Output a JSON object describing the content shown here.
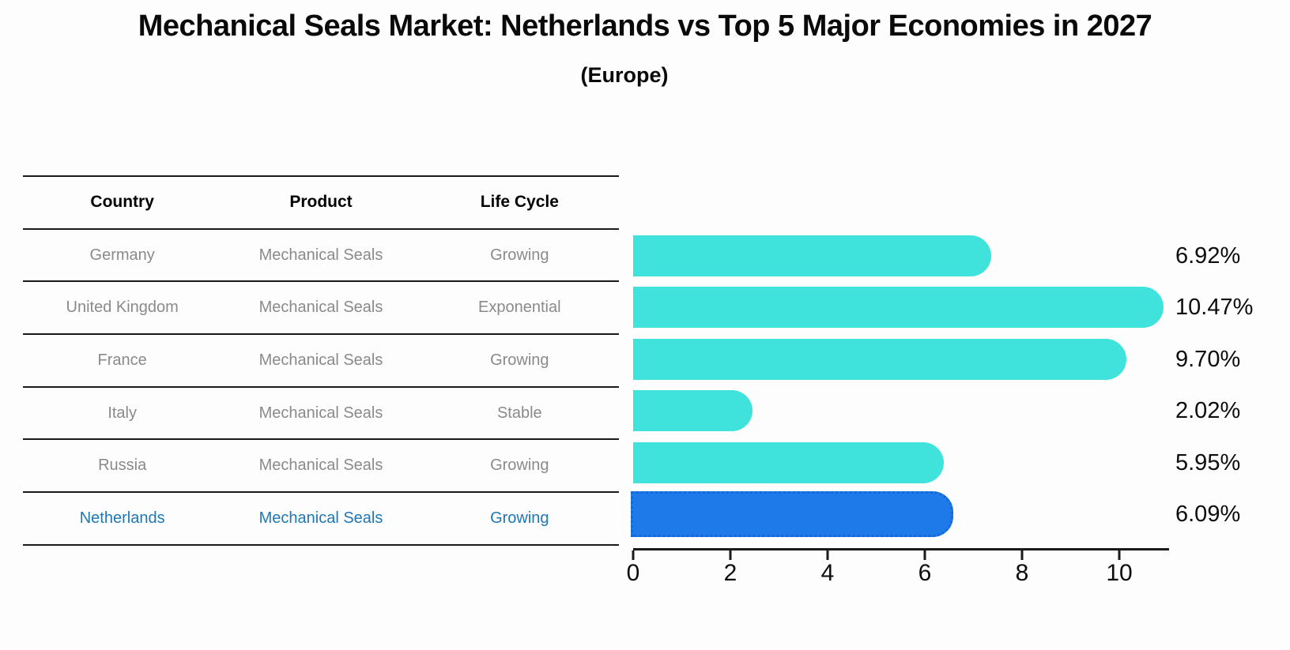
{
  "title": "Mechanical Seals Market: Netherlands vs Top 5 Major Economies in 2027",
  "subtitle": "(Europe)",
  "colors": {
    "background": "#fdfdfd",
    "bar_default": "#40e3dc",
    "bar_highlight": "#1e7ae8",
    "bar_highlight_edge": "#1668d6",
    "highlight_text": "#1f77b4",
    "row_text": "#8a8a8a",
    "header_text": "#000000",
    "axis": "#1a1a1a"
  },
  "table": {
    "headers": [
      "Country",
      "Product",
      "Life Cycle"
    ],
    "rows": [
      {
        "country": "Germany",
        "product": "Mechanical Seals",
        "life_cycle": "Growing",
        "highlight": false
      },
      {
        "country": "United Kingdom",
        "product": "Mechanical Seals",
        "life_cycle": "Exponential",
        "highlight": false
      },
      {
        "country": "France",
        "product": "Mechanical Seals",
        "life_cycle": "Growing",
        "highlight": false
      },
      {
        "country": "Italy",
        "product": "Mechanical Seals",
        "life_cycle": "Stable",
        "highlight": false
      },
      {
        "country": "Russia",
        "product": "Mechanical Seals",
        "life_cycle": "Growing",
        "highlight": false
      },
      {
        "country": "Netherlands",
        "product": "Mechanical Seals",
        "life_cycle": "Growing",
        "highlight": true
      }
    ]
  },
  "chart_data": {
    "type": "bar",
    "orientation": "horizontal",
    "title": "Mechanical Seals Market: Netherlands vs Top 5 Major Economies in 2027",
    "subtitle": "(Europe)",
    "categories": [
      "Germany",
      "United Kingdom",
      "France",
      "Italy",
      "Russia",
      "Netherlands"
    ],
    "values": [
      6.92,
      10.47,
      9.7,
      2.02,
      5.95,
      6.09
    ],
    "value_labels": [
      "6.92%",
      "10.47%",
      "9.70%",
      "2.02%",
      "5.95%",
      "6.09%"
    ],
    "highlight_index": 5,
    "xlim": [
      0,
      11
    ],
    "x_ticks": [
      "0",
      "2",
      "4",
      "6",
      "8",
      "10"
    ],
    "grid": false,
    "legend": false
  }
}
